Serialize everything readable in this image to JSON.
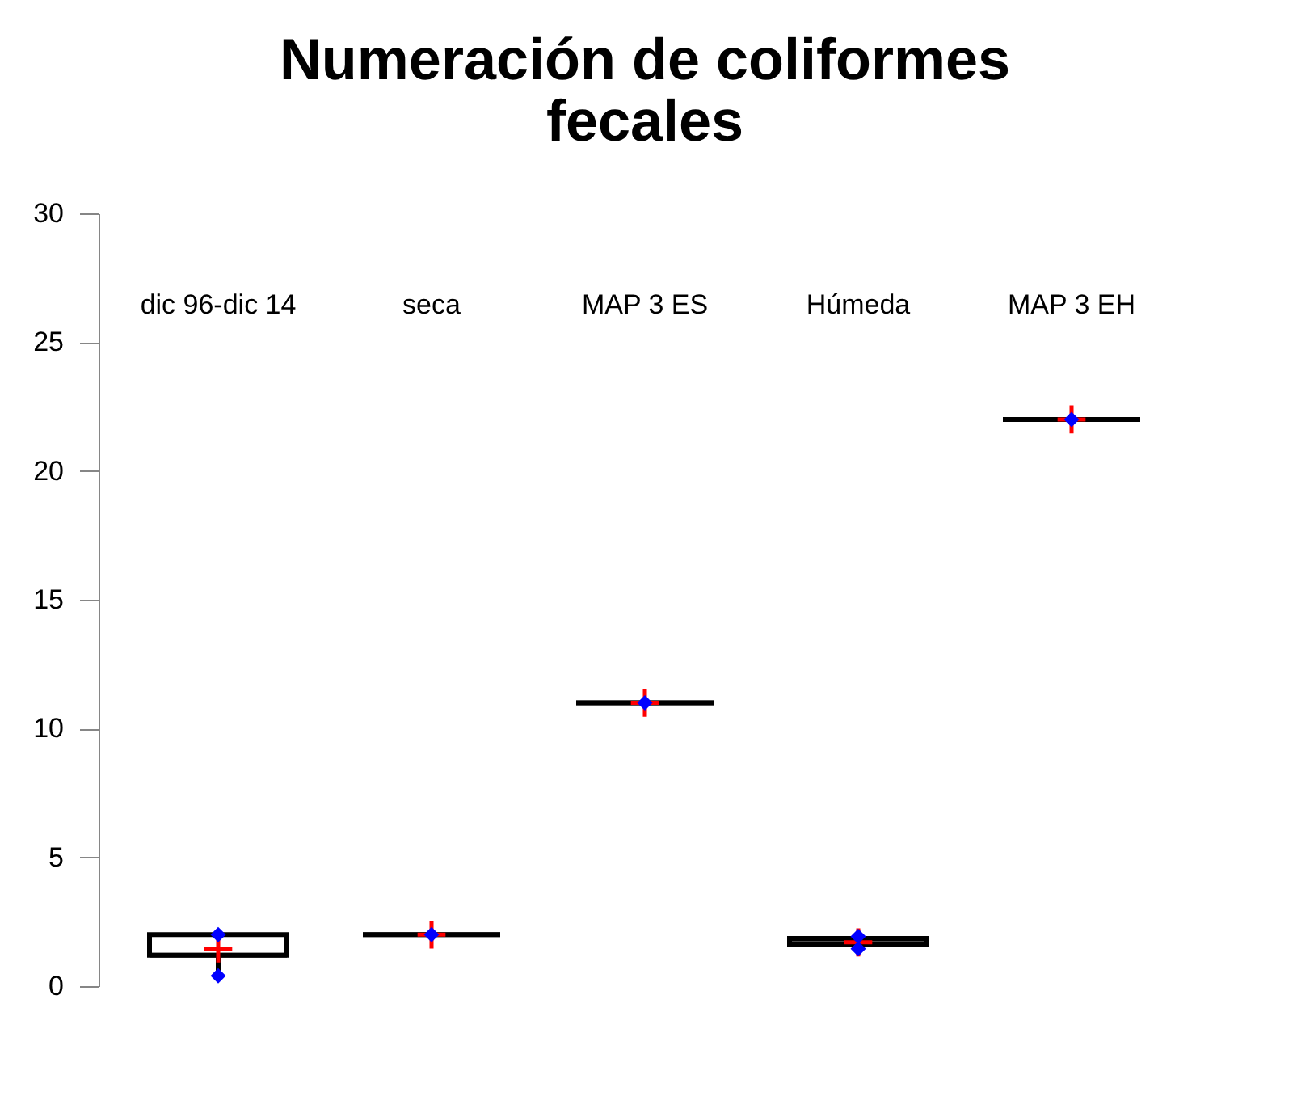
{
  "chart_data": {
    "type": "box",
    "title": [
      "Numeración de coliformes",
      "fecales"
    ],
    "categories": [
      "dic 96-dic 14",
      "seca",
      "MAP 3 ES",
      "Húmeda",
      "MAP 3 EH"
    ],
    "boxes": [
      {
        "low": 0.4,
        "q1": 1.2,
        "median": 1.2,
        "q3": 2.0,
        "high": 2.0,
        "mean": 1.46
      },
      {
        "low": 2.0,
        "q1": 2.0,
        "median": 2.0,
        "q3": 2.0,
        "high": 2.0,
        "mean": 2.0
      },
      {
        "low": 11.0,
        "q1": 11.0,
        "median": 11.0,
        "q3": 11.0,
        "high": 11.0,
        "mean": 11.0
      },
      {
        "low": 1.45,
        "q1": 1.6,
        "median": 1.7,
        "q3": 1.85,
        "high": 1.93,
        "mean": 1.7
      },
      {
        "low": 22.0,
        "q1": 22.0,
        "median": 22.0,
        "q3": 22.0,
        "high": 22.0,
        "mean": 22.0
      }
    ],
    "series": [
      {
        "type": "scatter",
        "color": "#0000ff",
        "marker": "diamond",
        "x": [
          "dic 96-dic 14",
          "seca",
          "MAP 3 ES",
          "Húmeda",
          "MAP 3 EH"
        ],
        "values": [
          0.4,
          null,
          null,
          1.45,
          null
        ]
      },
      {
        "type": "scatter",
        "color": "#0000ff",
        "marker": "diamond",
        "x": [
          "dic 96-dic 14",
          "seca",
          "MAP 3 ES",
          "Húmeda",
          "MAP 3 EH"
        ],
        "values": [
          2.0,
          null,
          null,
          1.93,
          null
        ]
      }
    ],
    "color": "#000000",
    "ylim": [
      0,
      30
    ],
    "yticks": [
      0,
      5,
      10,
      15,
      20,
      25,
      30
    ],
    "grid": false
  }
}
